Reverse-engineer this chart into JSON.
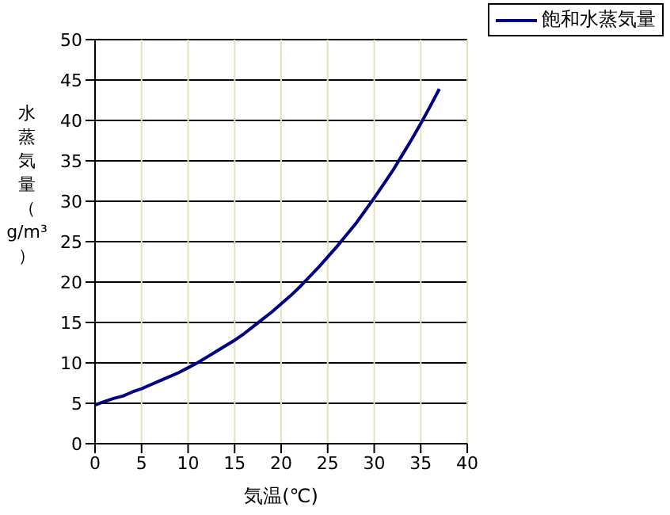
{
  "chart_data": {
    "type": "line",
    "xlabel": "気温(℃)",
    "ylabel": "水蒸気量（g/m³）",
    "x": [
      0,
      1,
      2,
      3,
      4,
      5,
      6,
      7,
      8,
      9,
      10,
      11,
      12,
      13,
      14,
      15,
      16,
      17,
      18,
      19,
      20,
      21,
      22,
      23,
      24,
      25,
      26,
      27,
      28,
      29,
      30,
      31,
      32,
      33,
      34,
      35,
      36,
      37
    ],
    "series": [
      {
        "name": "飽和水蒸気量",
        "color": "#000080",
        "values": [
          4.8,
          5.2,
          5.6,
          5.9,
          6.4,
          6.8,
          7.3,
          7.8,
          8.3,
          8.8,
          9.4,
          10.0,
          10.7,
          11.4,
          12.1,
          12.8,
          13.6,
          14.5,
          15.4,
          16.3,
          17.3,
          18.3,
          19.4,
          20.6,
          21.8,
          23.1,
          24.4,
          25.8,
          27.2,
          28.8,
          30.4,
          32.1,
          33.8,
          35.7,
          37.6,
          39.6,
          41.7,
          43.9
        ]
      }
    ],
    "xlim": [
      0,
      40
    ],
    "xticks": [
      0,
      5,
      10,
      15,
      20,
      25,
      30,
      35,
      40
    ],
    "ylim": [
      0,
      50
    ],
    "yticks": [
      0,
      5,
      10,
      15,
      20,
      25,
      30,
      35,
      40,
      45,
      50
    ],
    "grid": true,
    "legend": "top right",
    "line_style": "solid"
  }
}
